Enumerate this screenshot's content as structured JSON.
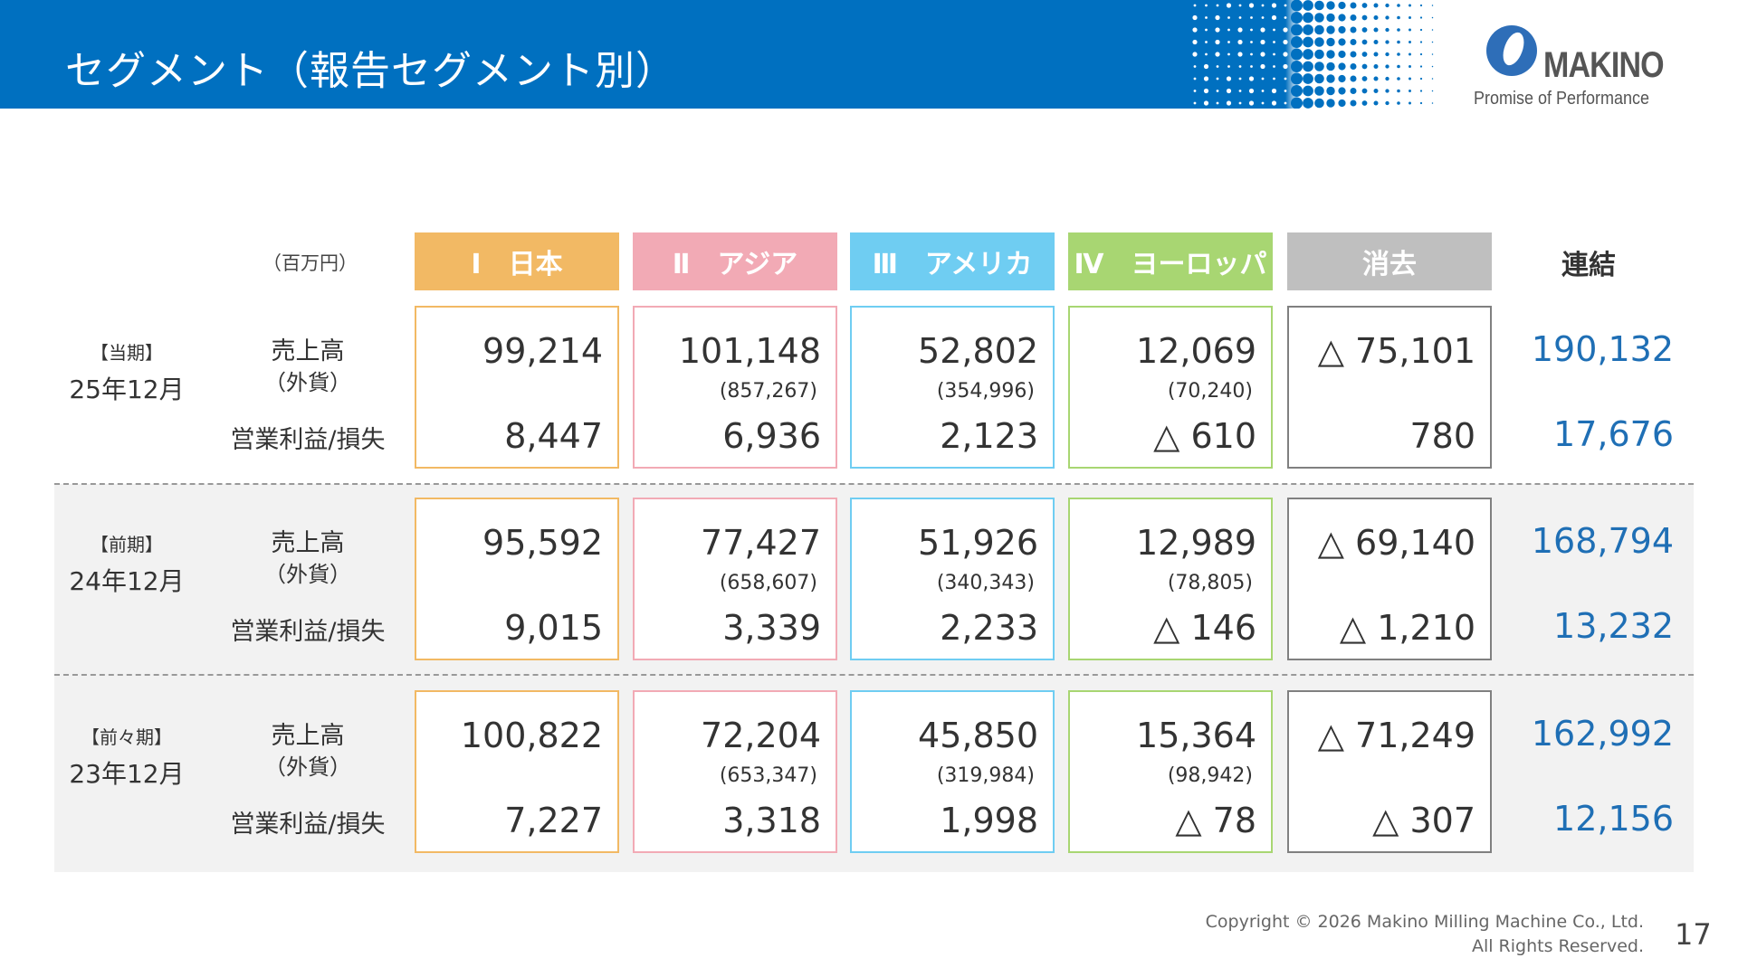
{
  "header": {
    "title": "セグメント（報告セグメント別）",
    "logo_text": "MAKINO",
    "tagline": "Promise of Performance"
  },
  "table": {
    "unit": "（百万円）",
    "columns": [
      {
        "label": "Ⅰ　日本",
        "color": "#F2B964"
      },
      {
        "label": "Ⅱ　アジア",
        "color": "#F2AAB5"
      },
      {
        "label": "Ⅲ　アメリカ",
        "color": "#6FCDF2"
      },
      {
        "label": "Ⅳ　ヨーロッパ",
        "color": "#A8D672"
      },
      {
        "label": "消去",
        "color": "#BFBFBF"
      }
    ],
    "consolidated_label": "連結",
    "sales_label": "売上高",
    "fx_label": "（外貨）",
    "op_label": "営業利益/損失",
    "rows": [
      {
        "period": "【当期】",
        "date": "25年12月",
        "cells": [
          {
            "sales": "99,214",
            "fx": "",
            "op": "8,447"
          },
          {
            "sales": "101,148",
            "fx": "(857,267)",
            "op": "6,936"
          },
          {
            "sales": "52,802",
            "fx": "(354,996)",
            "op": "2,123"
          },
          {
            "sales": "12,069",
            "fx": "(70,240)",
            "op": "△ 610"
          },
          {
            "sales": "△ 75,101",
            "fx": "",
            "op": "780"
          }
        ],
        "consolidated": {
          "sales": "190,132",
          "op": "17,676"
        }
      },
      {
        "period": "【前期】",
        "date": "24年12月",
        "cells": [
          {
            "sales": "95,592",
            "fx": "",
            "op": "9,015"
          },
          {
            "sales": "77,427",
            "fx": "(658,607)",
            "op": "3,339"
          },
          {
            "sales": "51,926",
            "fx": "(340,343)",
            "op": "2,233"
          },
          {
            "sales": "12,989",
            "fx": "(78,805)",
            "op": "△ 146"
          },
          {
            "sales": "△ 69,140",
            "fx": "",
            "op": "△ 1,210"
          }
        ],
        "consolidated": {
          "sales": "168,794",
          "op": "13,232"
        }
      },
      {
        "period": "【前々期】",
        "date": "23年12月",
        "cells": [
          {
            "sales": "100,822",
            "fx": "",
            "op": "7,227"
          },
          {
            "sales": "72,204",
            "fx": "(653,347)",
            "op": "3,318"
          },
          {
            "sales": "45,850",
            "fx": "(319,984)",
            "op": "1,998"
          },
          {
            "sales": "15,364",
            "fx": "(98,942)",
            "op": "△ 78"
          },
          {
            "sales": "△ 71,249",
            "fx": "",
            "op": "△ 307"
          }
        ],
        "consolidated": {
          "sales": "162,992",
          "op": "12,156"
        }
      }
    ]
  },
  "footer": {
    "copyright_line1": "Copyright © 2026 Makino Milling Machine Co., Ltd.",
    "copyright_line2": "All Rights Reserved.",
    "page_number": "17"
  }
}
